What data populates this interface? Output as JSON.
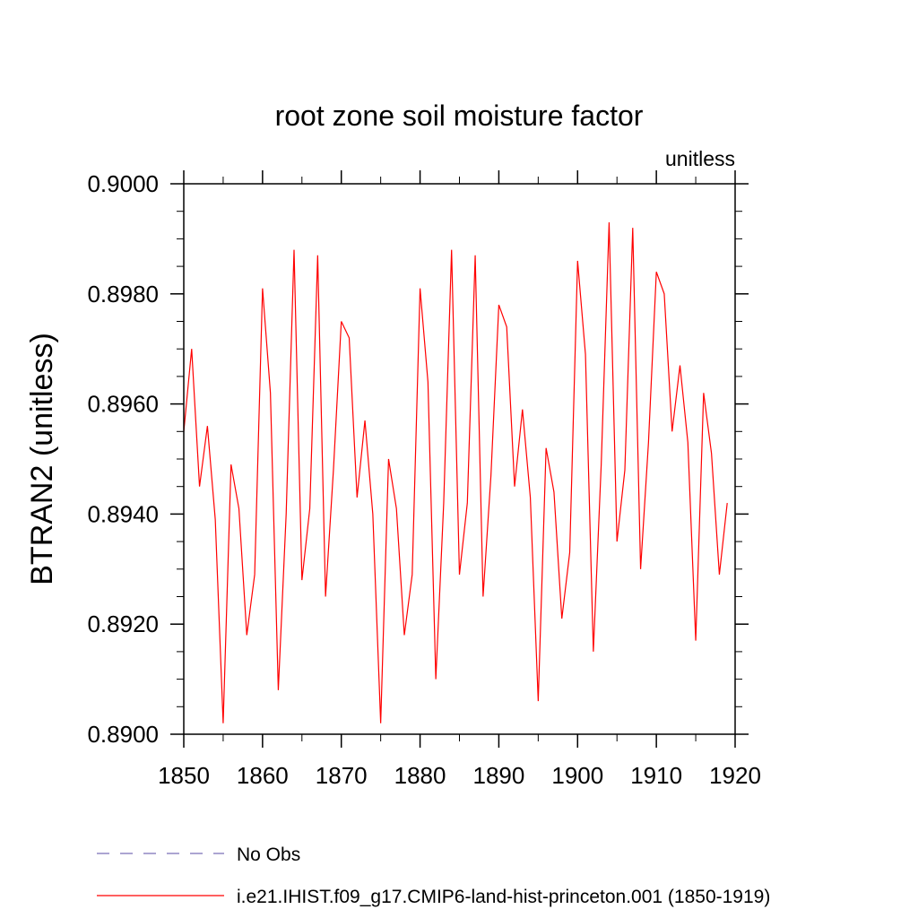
{
  "chart_data": {
    "type": "line",
    "title": "root zone soil moisture factor",
    "units_label": "unitless",
    "ylabel": "BTRAN2  (unitless)",
    "xlabel": "",
    "xlim": [
      1850,
      1920
    ],
    "ylim": [
      0.89,
      0.9
    ],
    "x_ticks": [
      "1850",
      "1860",
      "1870",
      "1880",
      "1890",
      "1900",
      "1910",
      "1920"
    ],
    "y_ticks": [
      "0.8900",
      "0.8920",
      "0.8940",
      "0.8960",
      "0.8980",
      "0.9000"
    ],
    "legend_position": "bottom",
    "series": [
      {
        "name": "No Obs",
        "color": "#7a6fb8",
        "dashed": true,
        "x": [],
        "values": []
      },
      {
        "name": "i.e21.IHIST.f09_g17.CMIP6-land-hist-princeton.001 (1850-1919)",
        "color": "#ff0000",
        "dashed": false,
        "x": [
          1850,
          1851,
          1852,
          1853,
          1854,
          1855,
          1856,
          1857,
          1858,
          1859,
          1860,
          1861,
          1862,
          1863,
          1864,
          1865,
          1866,
          1867,
          1868,
          1869,
          1870,
          1871,
          1872,
          1873,
          1874,
          1875,
          1876,
          1877,
          1878,
          1879,
          1880,
          1881,
          1882,
          1883,
          1884,
          1885,
          1886,
          1887,
          1888,
          1889,
          1890,
          1891,
          1892,
          1893,
          1894,
          1895,
          1896,
          1897,
          1898,
          1899,
          1900,
          1901,
          1902,
          1903,
          1904,
          1905,
          1906,
          1907,
          1908,
          1909,
          1910,
          1911,
          1912,
          1913,
          1914,
          1915,
          1916,
          1917,
          1918,
          1919
        ],
        "values": [
          0.8955,
          0.897,
          0.8945,
          0.8956,
          0.8939,
          0.8902,
          0.8949,
          0.8941,
          0.8918,
          0.8929,
          0.8981,
          0.8962,
          0.8908,
          0.894,
          0.8988,
          0.8928,
          0.8941,
          0.8987,
          0.8925,
          0.8948,
          0.8975,
          0.8972,
          0.8943,
          0.8957,
          0.894,
          0.8902,
          0.895,
          0.8941,
          0.8918,
          0.8929,
          0.8981,
          0.8964,
          0.891,
          0.8942,
          0.8988,
          0.8929,
          0.8942,
          0.8987,
          0.8925,
          0.8947,
          0.8978,
          0.8974,
          0.8945,
          0.8959,
          0.8943,
          0.8906,
          0.8952,
          0.8944,
          0.8921,
          0.8933,
          0.8986,
          0.8969,
          0.8915,
          0.8949,
          0.8993,
          0.8935,
          0.8948,
          0.8992,
          0.893,
          0.8953,
          0.8984,
          0.898,
          0.8955,
          0.8967,
          0.8953,
          0.8917,
          0.8962,
          0.8951,
          0.8929,
          0.8942
        ]
      }
    ]
  }
}
